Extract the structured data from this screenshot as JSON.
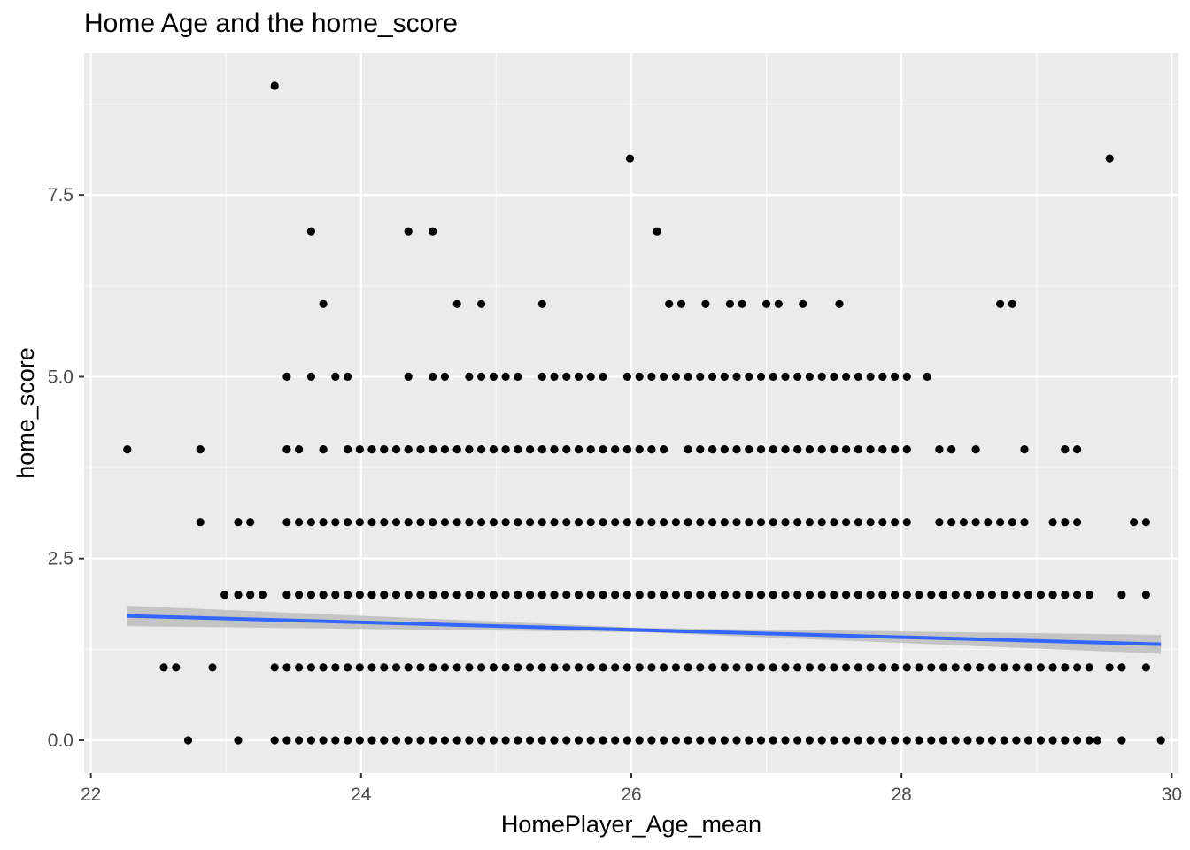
{
  "chart_data": {
    "type": "scatter",
    "title": "Home Age and the home_score",
    "xlabel": "HomePlayer_Age_mean",
    "ylabel": "home_score",
    "xlim": [
      21.95,
      30.05
    ],
    "ylim": [
      -0.45,
      9.45
    ],
    "x_ticks": [
      22,
      24,
      26,
      28,
      30
    ],
    "x_tick_labels": [
      "22",
      "24",
      "26",
      "28",
      "30"
    ],
    "y_ticks": [
      0,
      2.5,
      5,
      7.5
    ],
    "y_tick_labels": [
      "0.0",
      "2.5",
      "5.0",
      "7.5"
    ],
    "grid": true,
    "legend": "none",
    "colors": {
      "panel": "#ebebeb",
      "grid_major": "#ffffff",
      "grid_minor": "#f7f7f7",
      "point": "#000000",
      "trend": "#3366ff",
      "ribbon": "#bdbdbd"
    },
    "series": [
      {
        "values_by_score": [
          {
            "y": 0,
            "x": [
              22.72,
              23.09,
              23.36,
              23.45,
              23.54,
              23.63,
              23.72,
              23.81,
              23.9,
              23.99,
              24.08,
              24.17,
              24.26,
              24.35,
              24.44,
              24.53,
              24.62,
              24.71,
              24.8,
              24.89,
              24.98,
              25.07,
              25.16,
              25.25,
              25.34,
              25.43,
              25.52,
              25.61,
              25.7,
              25.79,
              25.88,
              25.97,
              26.06,
              26.15,
              26.24,
              26.33,
              26.42,
              26.51,
              26.6,
              26.69,
              26.78,
              26.87,
              26.96,
              27.05,
              27.14,
              27.23,
              27.32,
              27.41,
              27.5,
              27.59,
              27.68,
              27.77,
              27.86,
              27.95,
              28.04,
              28.13,
              28.22,
              28.31,
              28.4,
              28.49,
              28.58,
              28.67,
              28.76,
              28.85,
              28.94,
              29.03,
              29.12,
              29.21,
              29.3,
              29.39,
              29.45,
              29.63,
              29.92
            ]
          },
          {
            "y": 1,
            "x": [
              22.54,
              22.63,
              22.9,
              23.36,
              23.45,
              23.54,
              23.63,
              23.72,
              23.81,
              23.9,
              23.99,
              24.08,
              24.17,
              24.26,
              24.35,
              24.44,
              24.53,
              24.62,
              24.71,
              24.8,
              24.89,
              24.98,
              25.07,
              25.16,
              25.25,
              25.34,
              25.43,
              25.52,
              25.61,
              25.7,
              25.79,
              25.88,
              25.97,
              26.06,
              26.15,
              26.24,
              26.33,
              26.42,
              26.51,
              26.6,
              26.69,
              26.78,
              26.87,
              26.96,
              27.05,
              27.14,
              27.23,
              27.32,
              27.41,
              27.5,
              27.59,
              27.68,
              27.77,
              27.86,
              27.95,
              28.04,
              28.13,
              28.22,
              28.31,
              28.4,
              28.49,
              28.58,
              28.67,
              28.76,
              28.85,
              28.94,
              29.03,
              29.12,
              29.21,
              29.3,
              29.39,
              29.54,
              29.63,
              29.81
            ]
          },
          {
            "y": 2,
            "x": [
              22.99,
              23.09,
              23.18,
              23.27,
              23.45,
              23.54,
              23.63,
              23.72,
              23.81,
              23.9,
              23.99,
              24.08,
              24.17,
              24.26,
              24.35,
              24.44,
              24.53,
              24.62,
              24.71,
              24.8,
              24.89,
              24.98,
              25.07,
              25.16,
              25.25,
              25.34,
              25.43,
              25.52,
              25.61,
              25.7,
              25.79,
              25.88,
              25.97,
              26.06,
              26.15,
              26.24,
              26.33,
              26.42,
              26.51,
              26.6,
              26.69,
              26.78,
              26.87,
              26.96,
              27.05,
              27.14,
              27.23,
              27.32,
              27.41,
              27.5,
              27.59,
              27.68,
              27.77,
              27.86,
              27.95,
              28.04,
              28.13,
              28.22,
              28.31,
              28.4,
              28.49,
              28.58,
              28.67,
              28.76,
              28.85,
              28.94,
              29.03,
              29.12,
              29.21,
              29.3,
              29.39,
              29.63,
              29.81
            ]
          },
          {
            "y": 3,
            "x": [
              22.81,
              23.09,
              23.18,
              23.45,
              23.54,
              23.63,
              23.72,
              23.81,
              23.9,
              23.99,
              24.08,
              24.17,
              24.26,
              24.35,
              24.44,
              24.53,
              24.62,
              24.71,
              24.8,
              24.89,
              24.98,
              25.07,
              25.16,
              25.25,
              25.34,
              25.43,
              25.52,
              25.61,
              25.7,
              25.79,
              25.88,
              25.97,
              26.06,
              26.15,
              26.24,
              26.33,
              26.42,
              26.51,
              26.6,
              26.69,
              26.78,
              26.87,
              26.96,
              27.05,
              27.14,
              27.23,
              27.32,
              27.41,
              27.5,
              27.59,
              27.68,
              27.77,
              27.86,
              27.95,
              28.04,
              28.28,
              28.37,
              28.46,
              28.55,
              28.64,
              28.73,
              28.82,
              28.91,
              29.12,
              29.21,
              29.3,
              29.72,
              29.81
            ]
          },
          {
            "y": 4,
            "x": [
              22.27,
              22.81,
              23.45,
              23.54,
              23.72,
              23.9,
              23.99,
              24.08,
              24.17,
              24.26,
              24.35,
              24.44,
              24.53,
              24.62,
              24.71,
              24.8,
              24.89,
              24.98,
              25.07,
              25.16,
              25.25,
              25.34,
              25.43,
              25.52,
              25.61,
              25.7,
              25.79,
              25.88,
              25.97,
              26.06,
              26.15,
              26.24,
              26.42,
              26.51,
              26.6,
              26.69,
              26.78,
              26.87,
              26.96,
              27.05,
              27.14,
              27.23,
              27.32,
              27.41,
              27.5,
              27.59,
              27.68,
              27.77,
              27.86,
              27.95,
              28.04,
              28.28,
              28.37,
              28.55,
              28.91,
              29.21,
              29.3
            ]
          },
          {
            "y": 5,
            "x": [
              23.45,
              23.63,
              23.81,
              23.9,
              24.35,
              24.53,
              24.62,
              24.8,
              24.89,
              24.98,
              25.07,
              25.16,
              25.34,
              25.43,
              25.52,
              25.61,
              25.7,
              25.79,
              25.97,
              26.06,
              26.15,
              26.24,
              26.33,
              26.42,
              26.51,
              26.6,
              26.69,
              26.78,
              26.87,
              26.96,
              27.05,
              27.14,
              27.23,
              27.32,
              27.41,
              27.5,
              27.59,
              27.68,
              27.77,
              27.86,
              27.95,
              28.04,
              28.19
            ]
          },
          {
            "y": 6,
            "x": [
              23.72,
              24.71,
              24.89,
              25.34,
              26.28,
              26.37,
              26.55,
              26.73,
              26.82,
              27.0,
              27.09,
              27.27,
              27.54,
              28.73,
              28.82
            ]
          },
          {
            "y": 7,
            "x": [
              23.63,
              24.35,
              24.53,
              26.19
            ]
          },
          {
            "y": 8,
            "x": [
              25.99,
              29.54
            ]
          },
          {
            "y": 9,
            "x": [
              23.36
            ]
          }
        ]
      }
    ],
    "trend": {
      "method": "linear",
      "x_range": [
        22.27,
        29.92
      ],
      "y_start": 1.71,
      "y_end": 1.32,
      "se_start": 0.14,
      "se_mid": 0.03,
      "se_end": 0.13
    }
  }
}
